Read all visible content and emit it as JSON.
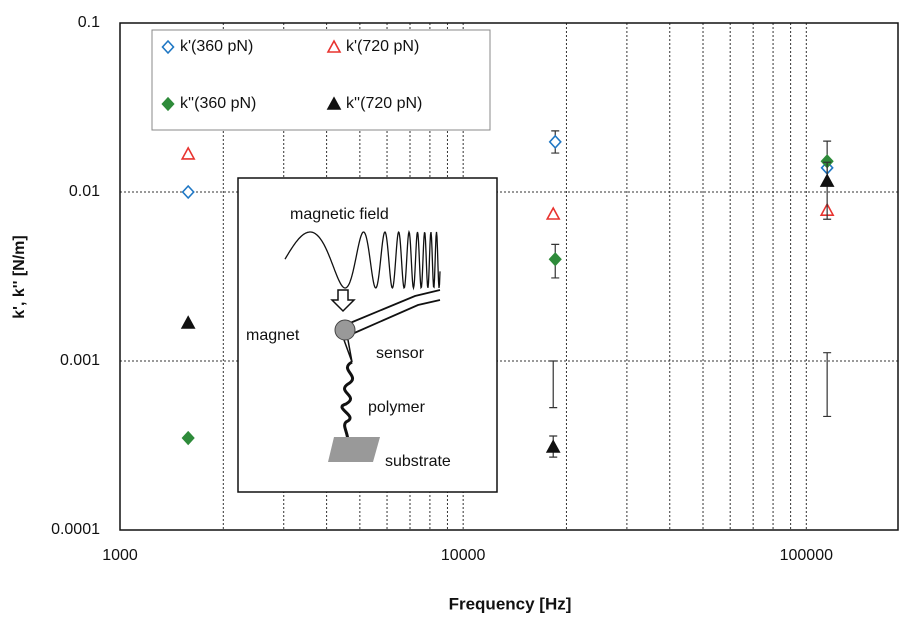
{
  "chart_data": {
    "type": "scatter",
    "x_label": "Frequency [Hz]",
    "y_label": "k', k'' [N/m]",
    "xlog": true,
    "ylog": true,
    "grid": true,
    "xlim": [
      1000,
      185000
    ],
    "ylim": [
      0.0001,
      0.1
    ],
    "xticks": [
      1000,
      10000,
      100000
    ],
    "xminorticks": [
      2000,
      3000,
      4000,
      5000,
      6000,
      7000,
      8000,
      9000,
      20000,
      30000,
      40000,
      50000,
      60000,
      70000,
      80000,
      90000
    ],
    "yticks": [
      0.0001,
      0.001,
      0.01,
      0.1
    ],
    "legend": "top-left",
    "series": [
      {
        "name": "k'(360 pN)",
        "color": "#1f77c4",
        "marker": "diamond",
        "filled": false,
        "x": [
          1580,
          18550,
          115000
        ],
        "values": [
          0.01,
          0.0198,
          0.0139
        ],
        "err_low": [
          null,
          0.017,
          null
        ],
        "err_high": [
          null,
          0.023,
          null
        ]
      },
      {
        "name": "k'(720 pN)",
        "color": "#e8332f",
        "marker": "triangle",
        "filled": false,
        "x": [
          1580,
          18300,
          115000
        ],
        "values": [
          0.0168,
          0.00741,
          0.00781
        ],
        "err_low": [
          null,
          0.00053,
          0.00047
        ],
        "err_high": [
          null,
          0.001,
          0.00112
        ]
      },
      {
        "name": "k''(360 pN)",
        "color": "#2e8b3a",
        "marker": "diamond",
        "filled": true,
        "x": [
          1580,
          18550,
          115000
        ],
        "values": [
          0.00035,
          0.004,
          0.0152
        ],
        "err_low": [
          null,
          0.0031,
          0.0115
        ],
        "err_high": [
          null,
          0.0049,
          0.02
        ]
      },
      {
        "name": "k''(720 pN)",
        "color": "#111111",
        "marker": "triangle",
        "filled": true,
        "x": [
          1580,
          18300,
          115000
        ],
        "values": [
          0.00168,
          0.00031,
          0.0116
        ],
        "err_low": [
          null,
          0.00027,
          0.0069
        ],
        "err_high": [
          null,
          0.00036,
          0.015
        ]
      }
    ],
    "inset": {
      "labels": [
        "magnetic field",
        "magnet",
        "sensor",
        "polymer",
        "substrate"
      ]
    }
  }
}
